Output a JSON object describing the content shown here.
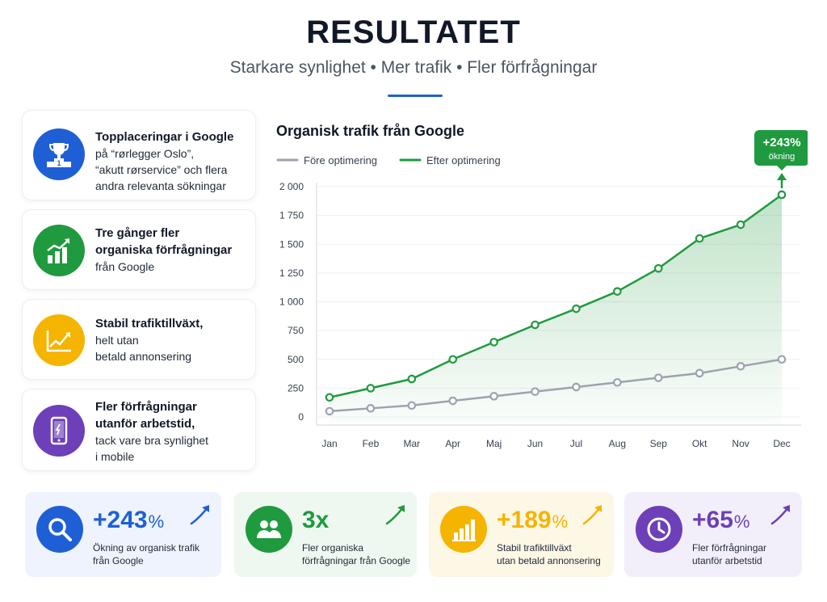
{
  "header": {
    "title": "RESULTATET",
    "subtitle": "Starkare synlighet • Mer trafik • Fler förfrågningar"
  },
  "features": [
    {
      "icon": "trophy-icon",
      "color": "#1f5fd6",
      "strong": "Topplaceringar i Google",
      "lines": [
        "på “rørlegger Oslo”,",
        "“akutt rørservice” och flera",
        "andra relevanta sökningar"
      ]
    },
    {
      "icon": "bar-growth-icon",
      "color": "#1f9a3e",
      "strong_lines": [
        "Tre gånger fler",
        "organiska förfrågningar"
      ],
      "lines": [
        "från Google"
      ]
    },
    {
      "icon": "line-trend-icon",
      "color": "#f5b400",
      "strong_lines": [
        "Stabil trafiktillväxt,"
      ],
      "lines": [
        "helt utan",
        "betald annonsering"
      ]
    },
    {
      "icon": "mobile-phone-icon",
      "color": "#6d3fb8",
      "strong_lines": [
        "Fler förfrågningar",
        "utanför arbetstid,"
      ],
      "lines": [
        "tack vare bra synlighet",
        "i mobile"
      ]
    }
  ],
  "chart_data": {
    "type": "line",
    "title": "Organisk trafik från Google",
    "categories": [
      "Jan",
      "Feb",
      "Mar",
      "Apr",
      "Maj",
      "Jun",
      "Jul",
      "Aug",
      "Sep",
      "Okt",
      "Nov",
      "Dec"
    ],
    "series": [
      {
        "name": "Före optimering",
        "color": "#9ca3af",
        "values": [
          50,
          75,
          100,
          140,
          180,
          220,
          260,
          300,
          340,
          380,
          440,
          500
        ]
      },
      {
        "name": "Efter optimering",
        "color": "#1f9a3e",
        "values": [
          170,
          250,
          330,
          500,
          650,
          800,
          940,
          1090,
          1290,
          1550,
          1670,
          1930
        ]
      }
    ],
    "yticks": [
      0,
      250,
      500,
      750,
      1000,
      1250,
      1500,
      1750,
      2000
    ],
    "ytick_labels": [
      "0",
      "250",
      "500",
      "750",
      "1 000",
      "1 250",
      "1 500",
      "1 750",
      "2 000"
    ],
    "ylim": [
      0,
      2000
    ],
    "legend_position": "top-left",
    "grid": true,
    "annotation": {
      "value": "+243",
      "unit": "%",
      "text": "ökning",
      "color": "#1f9a3e"
    }
  },
  "stats": [
    {
      "icon": "search-icon",
      "value": "+243",
      "unit": "%",
      "label_lines": [
        "Ökning av organisk trafik",
        "från Google"
      ],
      "accent": "#1f5fd6",
      "bg": "#eef3fd"
    },
    {
      "icon": "users-icon",
      "value": "3x",
      "unit": "",
      "label_lines": [
        "Fler organiska",
        "förfrågningar från Google"
      ],
      "accent": "#1f9a3e",
      "bg": "#eef8f0"
    },
    {
      "icon": "bar-chart-icon",
      "value": "+189",
      "unit": "%",
      "label_lines": [
        "Stabil trafiktillväxt",
        "utan betald annonsering"
      ],
      "accent": "#f5b400",
      "bg": "#fdf7e6"
    },
    {
      "icon": "clock-icon",
      "value": "+65",
      "unit": "%",
      "label_lines": [
        "Fler förfrågningar",
        "utanför arbetstid"
      ],
      "accent": "#6d3fb8",
      "bg": "#f3effa"
    }
  ]
}
